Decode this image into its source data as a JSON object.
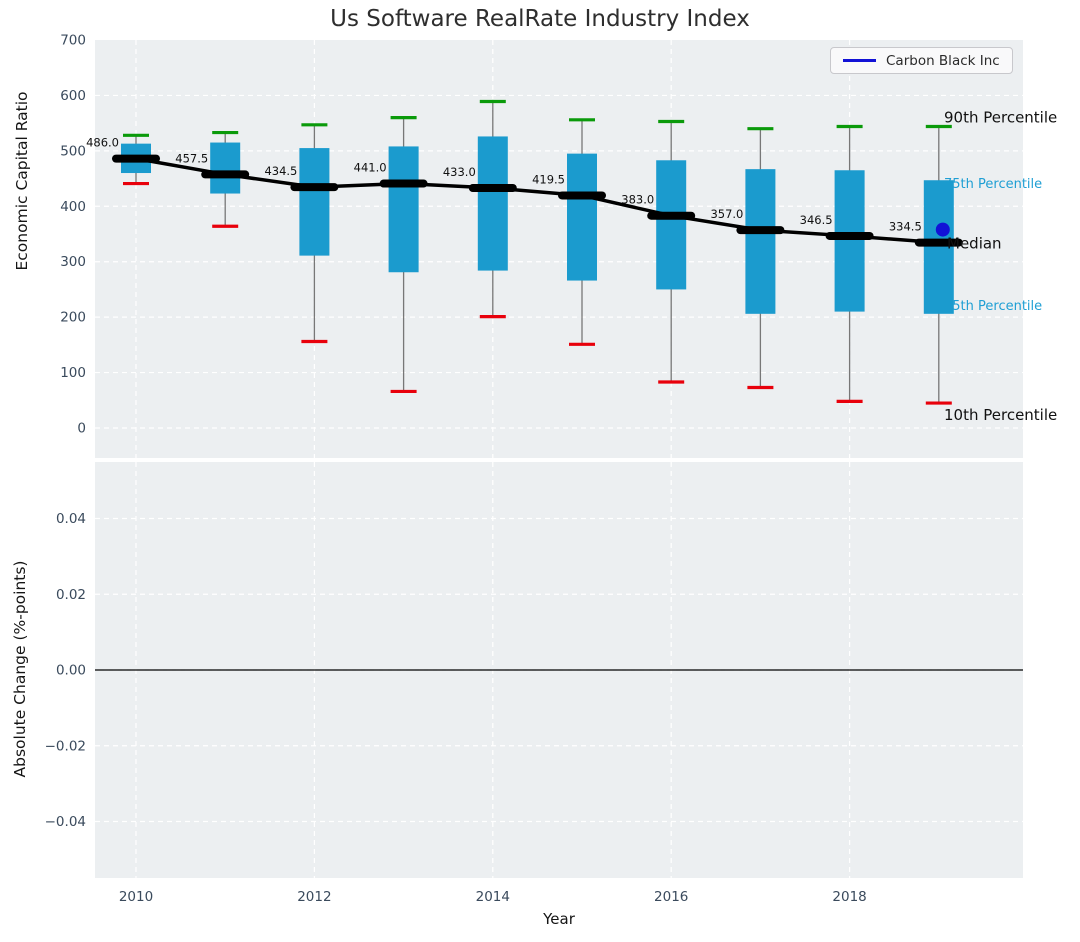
{
  "title": "Us Software RealRate Industry Index",
  "legend": {
    "label": "Carbon Black Inc"
  },
  "colors": {
    "box": "#1b9bce",
    "p90_cap": "#0a9a0a",
    "p10_cap": "#e8000b",
    "median_line": "#000000",
    "whisker": "#777777",
    "company_marker": "#1212d6",
    "plot_background": "#eceff1",
    "grid": "#ffffff",
    "tick_label": "#3a4a5c",
    "annotation_blue": "#1f9fd4",
    "annotation_black": "#111111",
    "zero_line": "#000000"
  },
  "chart_data": [
    {
      "type": "boxplot",
      "title": "Us Software RealRate Industry Index",
      "ylabel": "Economic Capital Ratio",
      "xlabel": "",
      "ylim": [
        -55,
        700
      ],
      "grid": "white-dashed",
      "legend_position": "upper right",
      "yticks": [
        {
          "label": "700",
          "value": 700
        },
        {
          "label": "600",
          "value": 600
        },
        {
          "label": "500",
          "value": 500
        },
        {
          "label": "400",
          "value": 400
        },
        {
          "label": "300",
          "value": 300
        },
        {
          "label": "200",
          "value": 200
        },
        {
          "label": "100",
          "value": 100
        },
        {
          "label": "0",
          "value": 0
        }
      ],
      "xgrid_years": [
        2010,
        2012,
        2014,
        2016,
        2018
      ],
      "series": [
        {
          "year": 2010,
          "p10": 441,
          "q1": 460,
          "median": 486.0,
          "q3": 513,
          "p90": 528,
          "label": "486.0"
        },
        {
          "year": 2011,
          "p10": 364,
          "q1": 423,
          "median": 457.5,
          "q3": 515,
          "p90": 533,
          "label": "457.5"
        },
        {
          "year": 2012,
          "p10": 156,
          "q1": 311,
          "median": 434.5,
          "q3": 505,
          "p90": 547,
          "label": "434.5"
        },
        {
          "year": 2013,
          "p10": 66,
          "q1": 281,
          "median": 441.0,
          "q3": 508,
          "p90": 560,
          "label": "441.0"
        },
        {
          "year": 2014,
          "p10": 201,
          "q1": 284,
          "median": 433.0,
          "q3": 526,
          "p90": 589,
          "label": "433.0"
        },
        {
          "year": 2015,
          "p10": 151,
          "q1": 266,
          "median": 419.5,
          "q3": 495,
          "p90": 556,
          "label": "419.5"
        },
        {
          "year": 2016,
          "p10": 83,
          "q1": 250,
          "median": 383.0,
          "q3": 483,
          "p90": 553,
          "label": "383.0"
        },
        {
          "year": 2017,
          "p10": 73,
          "q1": 206,
          "median": 357.0,
          "q3": 467,
          "p90": 540,
          "label": "357.0"
        },
        {
          "year": 2018,
          "p10": 48,
          "q1": 210,
          "median": 346.5,
          "q3": 465,
          "p90": 544,
          "label": "346.5"
        },
        {
          "year": 2019,
          "p10": 45,
          "q1": 206,
          "median": 334.5,
          "q3": 447,
          "p90": 544,
          "label": "334.5"
        }
      ],
      "company_point": {
        "name": "Carbon Black Inc",
        "year": 2019,
        "value": 358
      },
      "annotations": {
        "p90": "90th Percentile",
        "q3": "75th Percentile",
        "median": "Median",
        "q1": "25th Percentile",
        "p10": "10th Percentile"
      }
    },
    {
      "type": "line",
      "title": "",
      "ylabel": "Absolute Change (%-points)",
      "xlabel": "Year",
      "ylim": [
        -0.055,
        0.055
      ],
      "grid": "white-dashed",
      "yticks": [
        {
          "label": "0.04",
          "value": 0.04
        },
        {
          "label": "0.02",
          "value": 0.02
        },
        {
          "label": "0.00",
          "value": 0.0
        },
        {
          "label": "−0.02",
          "value": -0.02
        },
        {
          "label": "−0.04",
          "value": -0.04
        }
      ],
      "xticks": [
        {
          "label": "2010",
          "value": 2010
        },
        {
          "label": "2012",
          "value": 2012
        },
        {
          "label": "2014",
          "value": 2014
        },
        {
          "label": "2016",
          "value": 2016
        },
        {
          "label": "2018",
          "value": 2018
        }
      ],
      "series": [],
      "zero_line": 0.0
    }
  ]
}
